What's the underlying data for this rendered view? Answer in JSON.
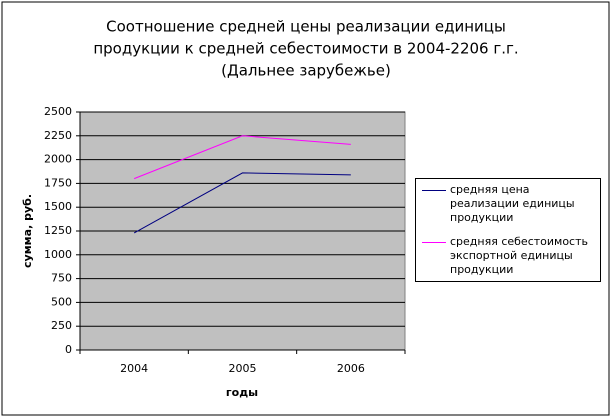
{
  "chart_data": {
    "type": "line",
    "title": [
      "Соотношение средней цены реализации единицы",
      "продукции к средней себестоимости в 2004-2206 г.г.",
      "(Дальнее зарубежье)"
    ],
    "x_label": "годы",
    "y_label": "сумма, руб.",
    "categories": [
      "2004",
      "2005",
      "2006"
    ],
    "series": [
      {
        "name": "средняя цена реализации единицы продукции",
        "color": "#000080",
        "values": [
          1230,
          1860,
          1840
        ]
      },
      {
        "name": "средняя себестоимость экспортной единицы продукции",
        "color": "#ff00ff",
        "values": [
          1800,
          2250,
          2160
        ]
      }
    ],
    "ylim": [
      0,
      2500
    ],
    "yticks": [
      0,
      250,
      500,
      750,
      1000,
      1250,
      1500,
      1750,
      2000,
      2250,
      2500
    ],
    "grid": true,
    "legend": "right"
  }
}
